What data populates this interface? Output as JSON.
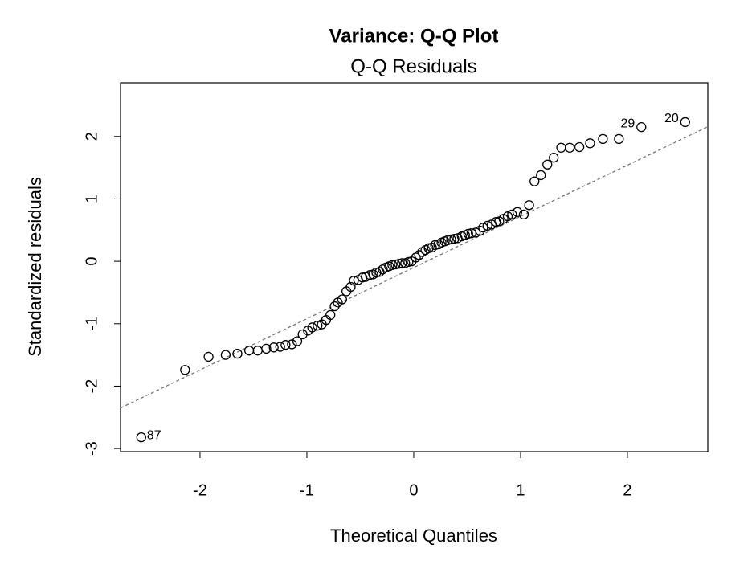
{
  "chart_data": {
    "type": "scatter",
    "title": "Variance: Q-Q Plot",
    "subtitle": "Q-Q Residuals",
    "x_label": "Theoretical Quantiles",
    "y_label": "Standardized residuals",
    "xlim": [
      -2.744,
      2.752
    ],
    "ylim": [
      -3.05,
      2.86
    ],
    "xticks": [
      -2,
      -1,
      0,
      1,
      2
    ],
    "yticks": [
      -3,
      -2,
      -1,
      0,
      1,
      2
    ],
    "color": "#000000",
    "reference_line": {
      "slope": 0.82,
      "intercept": -0.1,
      "color": "#777777"
    },
    "x": [
      -2.55,
      -2.14,
      -1.92,
      -1.76,
      -1.65,
      -1.54,
      -1.46,
      -1.38,
      -1.31,
      -1.25,
      -1.2,
      -1.14,
      -1.09,
      -1.04,
      -0.99,
      -0.95,
      -0.9,
      -0.86,
      -0.82,
      -0.78,
      -0.74,
      -0.71,
      -0.67,
      -0.63,
      -0.59,
      -0.56,
      -0.52,
      -0.48,
      -0.45,
      -0.41,
      -0.38,
      -0.35,
      -0.32,
      -0.29,
      -0.26,
      -0.23,
      -0.2,
      -0.17,
      -0.14,
      -0.11,
      -0.08,
      -0.05,
      -0.02,
      0.02,
      0.05,
      0.08,
      0.11,
      0.14,
      0.17,
      0.2,
      0.23,
      0.26,
      0.29,
      0.32,
      0.35,
      0.38,
      0.41,
      0.45,
      0.48,
      0.51,
      0.54,
      0.58,
      0.62,
      0.65,
      0.69,
      0.73,
      0.77,
      0.8,
      0.84,
      0.88,
      0.92,
      0.97,
      1.03,
      1.08,
      1.13,
      1.19,
      1.25,
      1.31,
      1.38,
      1.46,
      1.55,
      1.65,
      1.77,
      1.92,
      2.13,
      2.54
    ],
    "values": [
      -2.82,
      -1.74,
      -1.53,
      -1.5,
      -1.48,
      -1.43,
      -1.43,
      -1.4,
      -1.38,
      -1.37,
      -1.34,
      -1.33,
      -1.28,
      -1.17,
      -1.11,
      -1.06,
      -1.03,
      -1.01,
      -0.94,
      -0.86,
      -0.72,
      -0.66,
      -0.61,
      -0.48,
      -0.41,
      -0.31,
      -0.3,
      -0.26,
      -0.25,
      -0.22,
      -0.21,
      -0.18,
      -0.17,
      -0.13,
      -0.1,
      -0.08,
      -0.06,
      -0.05,
      -0.04,
      -0.03,
      -0.03,
      -0.01,
      0.0,
      0.06,
      0.1,
      0.15,
      0.18,
      0.21,
      0.22,
      0.26,
      0.27,
      0.3,
      0.32,
      0.34,
      0.35,
      0.36,
      0.37,
      0.4,
      0.42,
      0.44,
      0.45,
      0.46,
      0.49,
      0.54,
      0.57,
      0.59,
      0.63,
      0.64,
      0.68,
      0.72,
      0.75,
      0.79,
      0.75,
      0.9,
      1.28,
      1.38,
      1.55,
      1.66,
      1.82,
      1.82,
      1.83,
      1.89,
      1.96,
      1.96,
      2.15,
      2.23
    ],
    "point_labels": [
      "87",
      null,
      null,
      null,
      null,
      null,
      null,
      null,
      null,
      null,
      null,
      null,
      null,
      null,
      null,
      null,
      null,
      null,
      null,
      null,
      null,
      null,
      null,
      null,
      null,
      null,
      null,
      null,
      null,
      null,
      null,
      null,
      null,
      null,
      null,
      null,
      null,
      null,
      null,
      null,
      null,
      null,
      null,
      null,
      null,
      null,
      null,
      null,
      null,
      null,
      null,
      null,
      null,
      null,
      null,
      null,
      null,
      null,
      null,
      null,
      null,
      null,
      null,
      null,
      null,
      null,
      null,
      null,
      null,
      null,
      null,
      null,
      null,
      null,
      null,
      null,
      null,
      null,
      null,
      null,
      null,
      null,
      null,
      null,
      "29",
      "20"
    ]
  }
}
